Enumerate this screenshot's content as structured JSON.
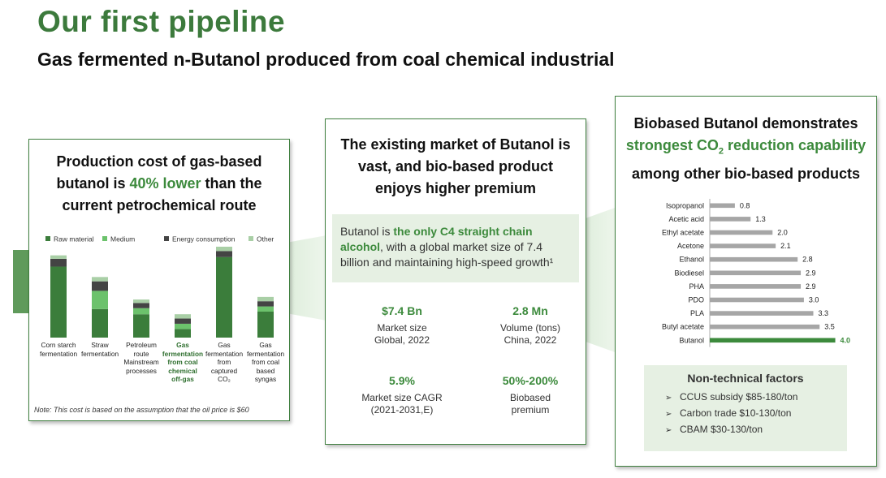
{
  "header": {
    "title": "Our first pipeline",
    "subtitle": "Gas fermented n-Butanol produced from coal chemical industrial"
  },
  "colors": {
    "brand_green": "#3c7a3c",
    "raw_material": "#3b7d3b",
    "medium": "#6cc26c",
    "energy": "#444444",
    "other": "#a9cfa6",
    "bar_grey": "#a6a6a6",
    "highlight_green": "#3c8a3c"
  },
  "left_card": {
    "heading_line1": "Production cost of gas-based",
    "heading_pre": "butanol is ",
    "heading_hl": "40% lower",
    "heading_post": " than the",
    "heading_line3": "current petrochemical route",
    "note": "Note: This cost is based on the assumption that the oil price is $60"
  },
  "middle_card": {
    "heading_line1": "The existing market of Butanol is",
    "heading_line2": "vast, and bio-based product",
    "heading_line3": "enjoys higher premium",
    "info_pre": "Butanol is ",
    "info_hl": "the only C4 straight chain alcohol",
    "info_post": ", with a global market size of 7.4 billion and maintaining high-speed growth¹",
    "stats": [
      {
        "value": "$7.4 Bn",
        "label_line1": "Market size",
        "label_line2": "Global, 2022"
      },
      {
        "value": "2.8 Mn",
        "label_line1": "Volume (tons)",
        "label_line2": "China, 2022"
      },
      {
        "value": "5.9%",
        "label_line1": "Market size CAGR",
        "label_line2": "(2021-2031,E)"
      },
      {
        "value": "50%-200%",
        "label_line1": "Biobased",
        "label_line2": "premium"
      }
    ]
  },
  "right_card": {
    "heading_line1": "Biobased Butanol demonstrates",
    "heading_hl_pre": "strongest CO",
    "heading_hl_sub": "2",
    "heading_hl_post": " reduction capability",
    "heading_line3": "among other bio-based products",
    "nontech_title": "Non-technical factors",
    "nontech_items": [
      "CCUS subsidy $85-180/ton",
      "Carbon trade $10-130/ton",
      "CBAM $30-130/ton"
    ],
    "arrow_glyph": "➢"
  },
  "chart_data": [
    {
      "type": "bar",
      "stacked": true,
      "title": "",
      "categories": [
        [
          "Corn starch",
          "fermentation"
        ],
        [
          "Straw",
          "fermentation"
        ],
        [
          "Petroleum",
          "route",
          "Mainstream",
          "processes"
        ],
        [
          "Gas",
          "fermentation",
          "from coal",
          "chemical",
          "off-gas"
        ],
        [
          "Gas",
          "fermentation",
          "from",
          "captured",
          "CO₂"
        ],
        [
          "Gas",
          "fermentation",
          "from coal",
          "based",
          "syngas"
        ]
      ],
      "highlight_category": 3,
      "series": [
        {
          "name": "Raw material",
          "values": [
            82,
            33,
            27,
            10,
            93,
            30
          ]
        },
        {
          "name": "Medium",
          "values": [
            0,
            21,
            7,
            6,
            0,
            6
          ]
        },
        {
          "name": "Energy consumption",
          "values": [
            9,
            11,
            6,
            6,
            7,
            6
          ]
        },
        {
          "name": "Other",
          "values": [
            4,
            5,
            4,
            5,
            5,
            5
          ]
        }
      ],
      "ylim": [
        0,
        105
      ],
      "y_axis_visible": false,
      "legend_position": "top"
    },
    {
      "type": "bar",
      "orientation": "horizontal",
      "title": "",
      "categories": [
        "Isopropanol",
        "Acetic acid",
        "Ethyl acetate",
        "Acetone",
        "Ethanol",
        "Biodiesel",
        "PHA",
        "PDO",
        "PLA",
        "Butyl acetate",
        "Butanol"
      ],
      "values": [
        0.8,
        1.3,
        2.0,
        2.1,
        2.8,
        2.9,
        2.9,
        3.0,
        3.3,
        3.5,
        4.0
      ],
      "value_labels": [
        "0.8",
        "1.3",
        "2.0",
        "2.1",
        "2.8",
        "2.9",
        "2.9",
        "3.0",
        "3.3",
        "3.5",
        "4.0"
      ],
      "highlight_category": "Butanol",
      "xlim": [
        0,
        4.4
      ]
    }
  ]
}
